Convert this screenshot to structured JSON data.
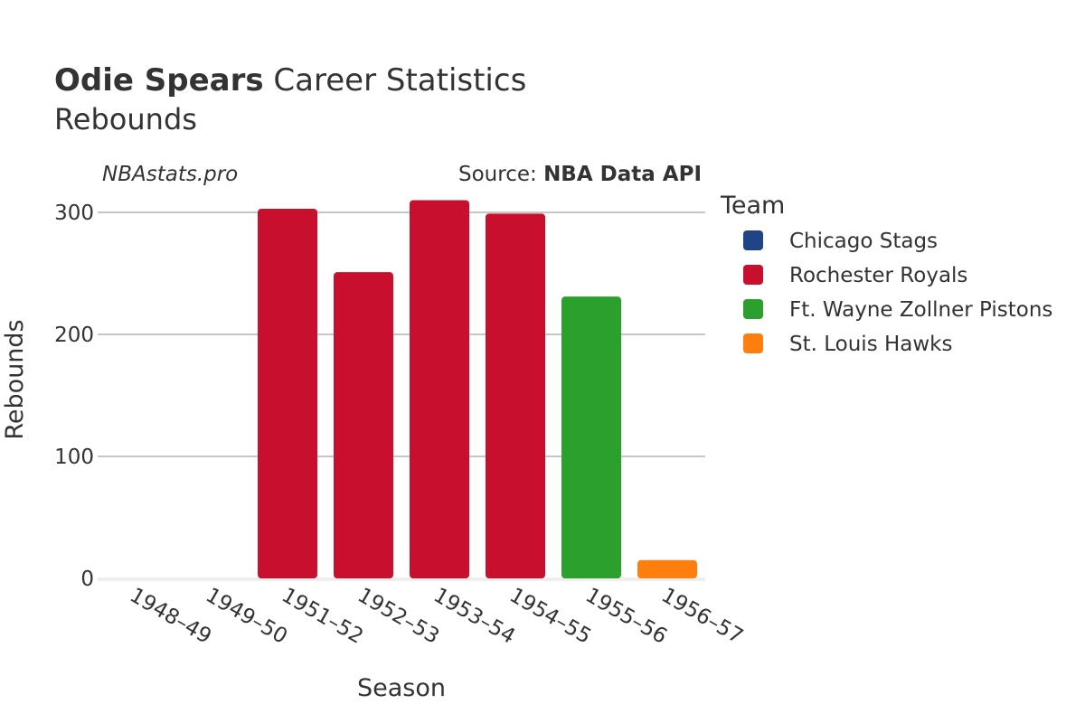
{
  "chart_data": {
    "type": "bar",
    "title_bold": "Odie Spears",
    "title_rest": " Career Statistics",
    "subtitle": "Rebounds",
    "brand": "NBAstats.pro",
    "source_prefix": "Source: ",
    "source_name": "NBA Data API",
    "xlabel": "Season",
    "ylabel": "Rebounds",
    "ylim": [
      0,
      330
    ],
    "yticks": [
      0,
      100,
      200,
      300
    ],
    "grid": true,
    "legend_title": "Team",
    "legend_position": "right",
    "categories": [
      "1948–49",
      "1949–50",
      "1951–52",
      "1952–53",
      "1953–54",
      "1954–55",
      "1955–56",
      "1956–57"
    ],
    "bars": [
      {
        "category": "1948–49",
        "team": "Chicago Stags",
        "value": 0
      },
      {
        "category": "1949–50",
        "team": "Rochester Royals",
        "value": 0
      },
      {
        "category": "1951–52",
        "team": "Rochester Royals",
        "value": 303
      },
      {
        "category": "1952–53",
        "team": "Rochester Royals",
        "value": 251
      },
      {
        "category": "1953–54",
        "team": "Rochester Royals",
        "value": 310
      },
      {
        "category": "1954–55",
        "team": "Rochester Royals",
        "value": 299
      },
      {
        "category": "1955–56",
        "team": "Ft. Wayne Zollner Pistons",
        "value": 231
      },
      {
        "category": "1956–57",
        "team": "St. Louis Hawks",
        "value": 15
      }
    ],
    "series": [
      {
        "name": "Chicago Stags",
        "color": "#1f4587"
      },
      {
        "name": "Rochester Royals",
        "color": "#c8102e"
      },
      {
        "name": "Ft. Wayne Zollner Pistons",
        "color": "#2ca02c"
      },
      {
        "name": "St. Louis Hawks",
        "color": "#ff7f0e"
      }
    ]
  }
}
